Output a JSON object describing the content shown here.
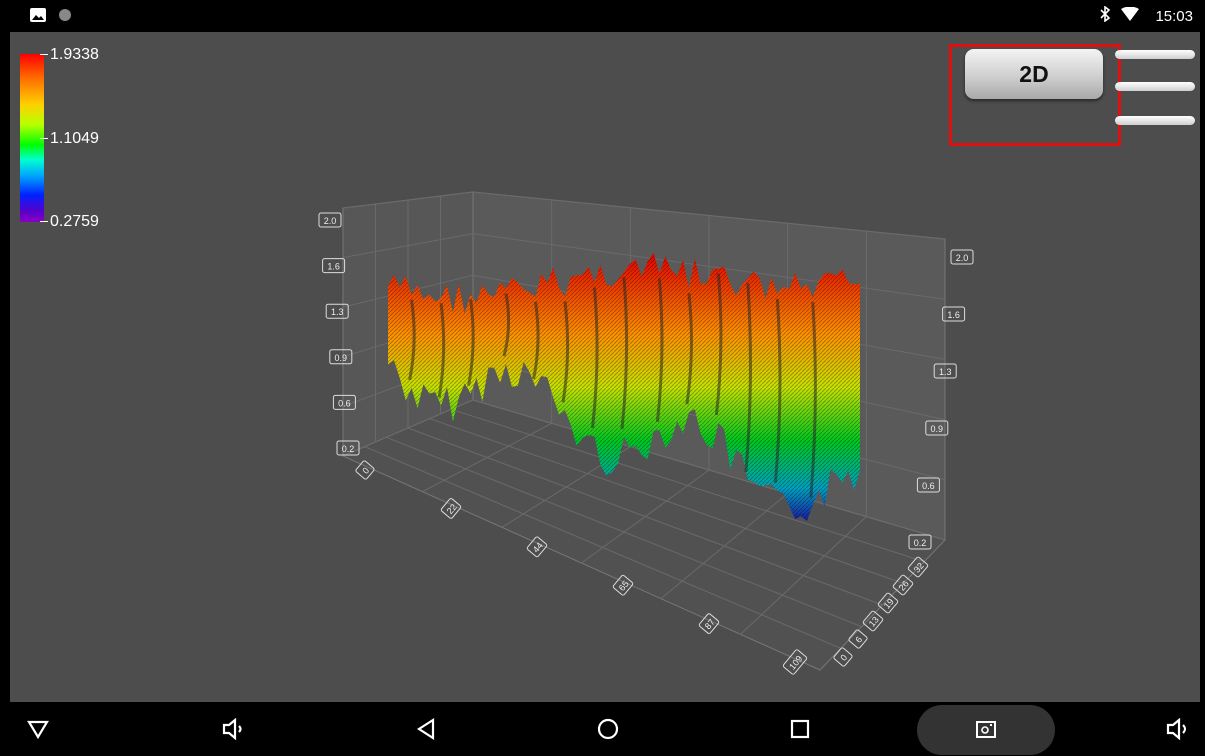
{
  "status_bar": {
    "time": "15:03",
    "icons": [
      "gallery-icon",
      "circle-icon",
      "bluetooth-icon",
      "wifi-icon"
    ]
  },
  "color_legend": {
    "max": "1.9338",
    "mid": "1.1049",
    "min": "0.2759",
    "gradient": [
      "#ff0000",
      "#ffd000",
      "#00ff00",
      "#00a0ff",
      "#0020ff",
      "#8a00c8"
    ]
  },
  "toolbar": {
    "mode_button_label": "2D",
    "highlight_color": "#e01010"
  },
  "chart_data": {
    "type": "surface",
    "z_axis_left_ticks": [
      "2.0",
      "1.6",
      "1.3",
      "0.9",
      "0.6",
      "0.2"
    ],
    "z_axis_right_ticks": [
      "2.0",
      "1.6",
      "1.3",
      "0.9",
      "0.6",
      "0.2"
    ],
    "x_axis_ticks": [
      "0",
      "22",
      "44",
      "65",
      "87",
      "109"
    ],
    "y_axis_ticks": [
      "0",
      "6",
      "13",
      "19",
      "26",
      "32"
    ],
    "zlim": [
      0.2,
      2.0
    ]
  },
  "nav_bar": {
    "icons": [
      "triangle-down-icon",
      "volume-down-icon",
      "back-icon",
      "home-icon",
      "recents-icon",
      "screenshot-icon",
      "volume-up-icon"
    ]
  }
}
